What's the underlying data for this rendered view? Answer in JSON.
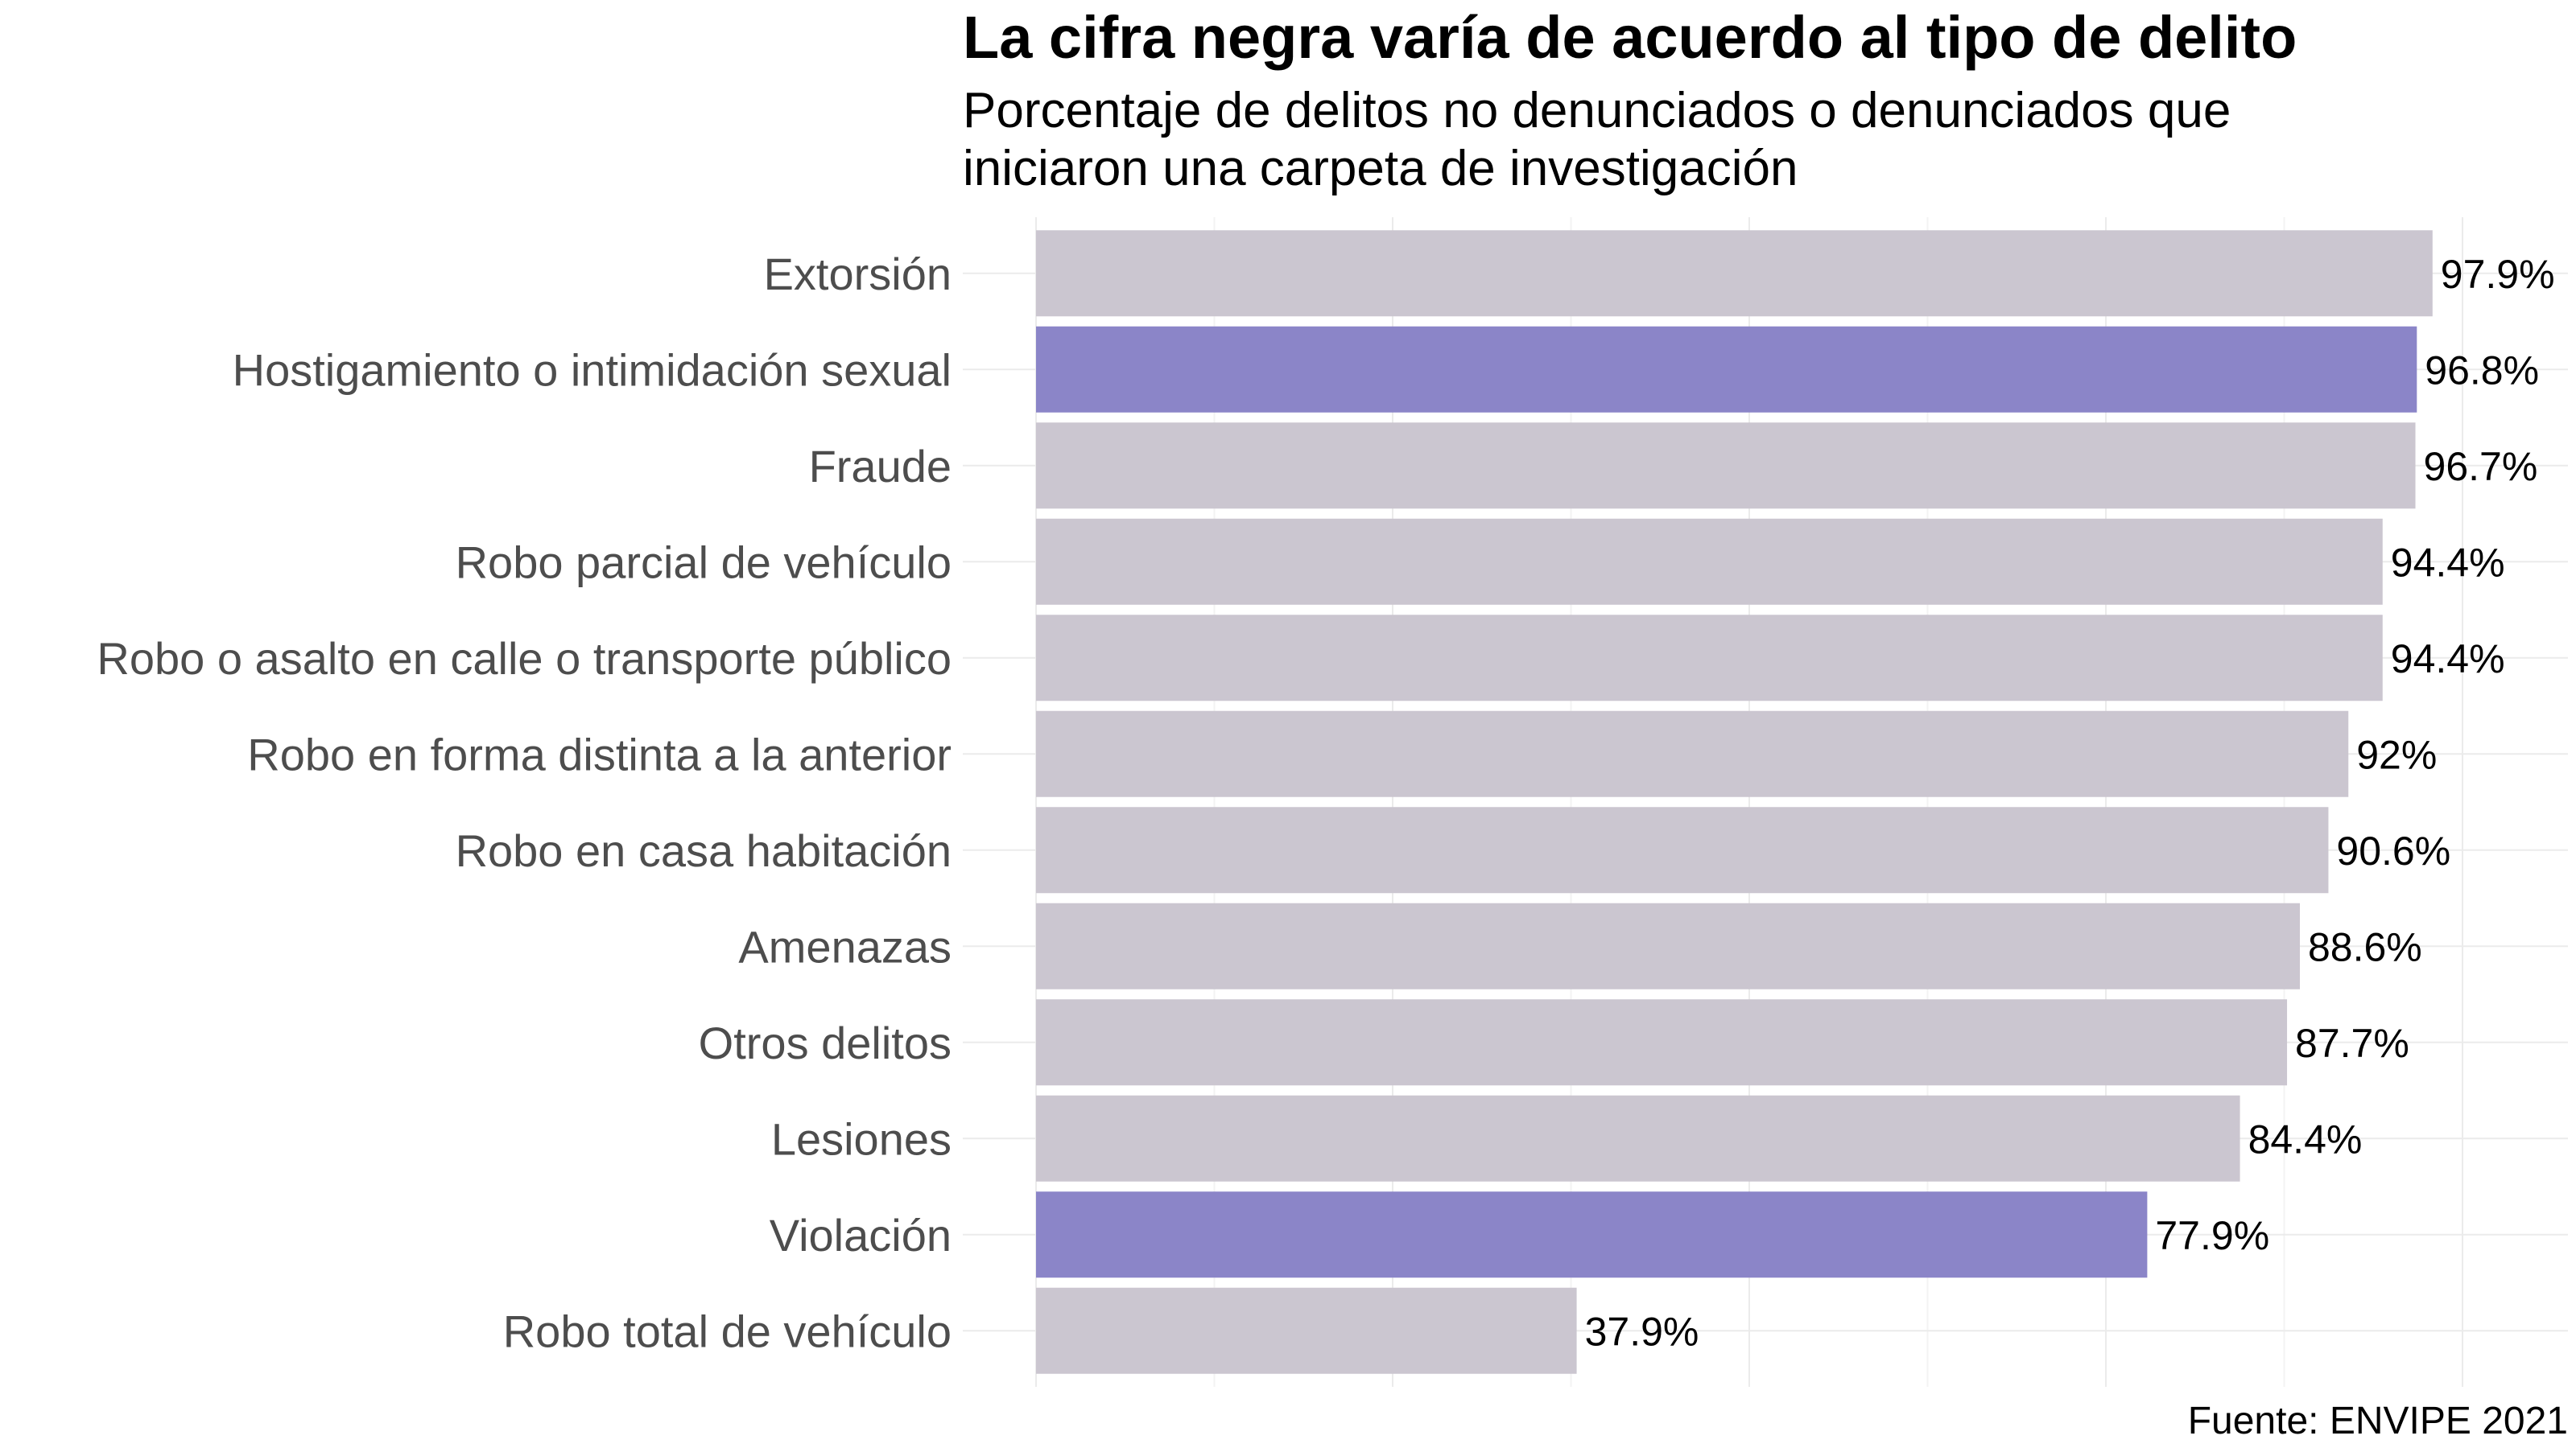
{
  "chart_data": {
    "type": "bar",
    "orientation": "horizontal",
    "title": "La cifra negra varía de acuerdo al tipo de delito",
    "subtitle_lines": [
      "Porcentaje de delitos no denunciados o denunciados que",
      "iniciaron una carpeta de investigación"
    ],
    "caption": "Fuente: ENVIPE 2021",
    "xlabel": "",
    "ylabel": "",
    "xlim": [
      0,
      100
    ],
    "grid": true,
    "legend": "none",
    "colors": {
      "default": "#cbc6d0",
      "highlight": "#8b85c8"
    },
    "categories": [
      "Extorsión",
      "Hostigamiento o intimidación sexual",
      "Fraude",
      "Robo parcial de vehículo",
      "Robo o asalto en calle o transporte público",
      "Robo en forma distinta a la anterior",
      "Robo en casa habitación",
      "Amenazas",
      "Otros delitos",
      "Lesiones",
      "Violación",
      "Robo total de vehículo"
    ],
    "values": [
      97.9,
      96.8,
      96.7,
      94.4,
      94.4,
      92,
      90.6,
      88.6,
      87.7,
      84.4,
      77.9,
      37.9
    ],
    "value_labels": [
      "97.9%",
      "96.8%",
      "96.7%",
      "94.4%",
      "94.4%",
      "92%",
      "90.6%",
      "88.6%",
      "87.7%",
      "84.4%",
      "77.9%",
      "37.9%"
    ],
    "highlighted": [
      false,
      true,
      false,
      false,
      false,
      false,
      false,
      false,
      false,
      false,
      true,
      false
    ]
  }
}
